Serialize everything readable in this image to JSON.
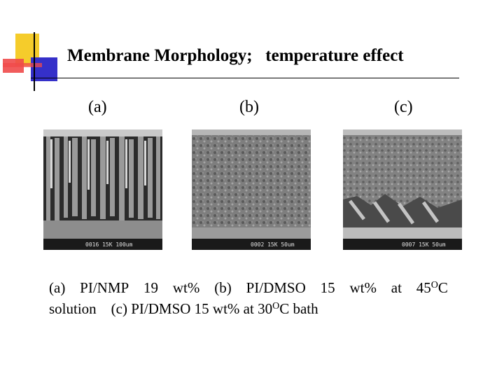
{
  "slide": {
    "title": "Membrane Morphology;   temperature effect",
    "panels": [
      {
        "label": "(a)",
        "image_alt": "SEM cross-section (a)",
        "scale_text": "0016 15K  100um"
      },
      {
        "label": "(b)",
        "image_alt": "SEM cross-section (b)",
        "scale_text": "0002 15K    50um"
      },
      {
        "label": "(c)",
        "image_alt": "SEM cross-section (c)",
        "scale_text": "0007 15K    50um"
      }
    ],
    "caption": {
      "line1": [
        "(a)",
        "PI/NMP",
        "19",
        "wt%",
        "(b)",
        "PI/DMSO",
        "15",
        "wt%",
        "at",
        "45"
      ],
      "degree_symbol": "O",
      "line1_unit": "C",
      "line2_a": "solution    (c) PI/DMSO 15 wt% at 30",
      "line2_b": "C bath"
    },
    "colors": {
      "yellow": "#f5cc2b",
      "red": "#f04a4a",
      "blue": "#3530c9"
    }
  }
}
